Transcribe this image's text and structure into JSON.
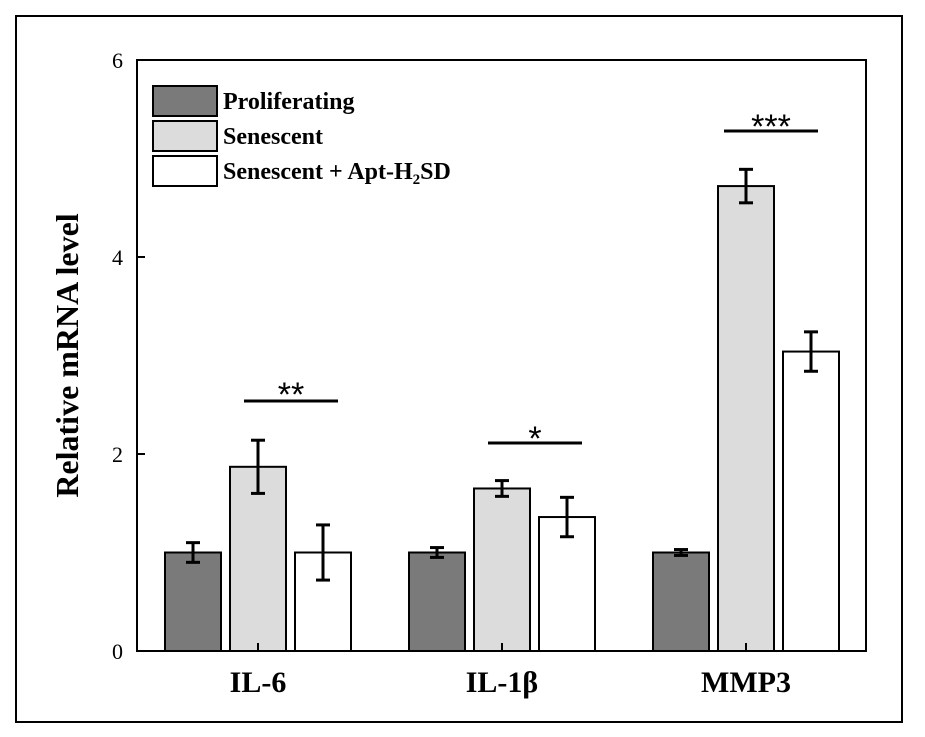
{
  "chart_data": {
    "type": "bar",
    "categories": [
      "IL-6",
      "IL-1β",
      "MMP3"
    ],
    "ylabel": "Relative mRNA level",
    "xlabel": "",
    "ylim": [
      0,
      6
    ],
    "yticks": [
      "0",
      "2",
      "4",
      "6"
    ],
    "grid": false,
    "legend_position": "top-left",
    "series": [
      {
        "name": "Proliferating",
        "color": "#7a7a7a",
        "values": [
          1.0,
          1.0,
          1.0
        ],
        "errors": [
          0.1,
          0.05,
          0.03
        ]
      },
      {
        "name": "Senescent",
        "color": "#dcdcdc",
        "values": [
          1.87,
          1.65,
          4.72
        ],
        "errors": [
          0.27,
          0.08,
          0.17
        ]
      },
      {
        "name": "Senescent + Apt-H₂SD",
        "color": "#ffffff",
        "values": [
          1.0,
          1.36,
          3.04
        ],
        "errors": [
          0.28,
          0.2,
          0.2
        ]
      }
    ],
    "annotations": [
      {
        "category": "IL-6",
        "text": "**"
      },
      {
        "category": "IL-1β",
        "text": "*"
      },
      {
        "category": "MMP3",
        "text": "***"
      }
    ]
  }
}
